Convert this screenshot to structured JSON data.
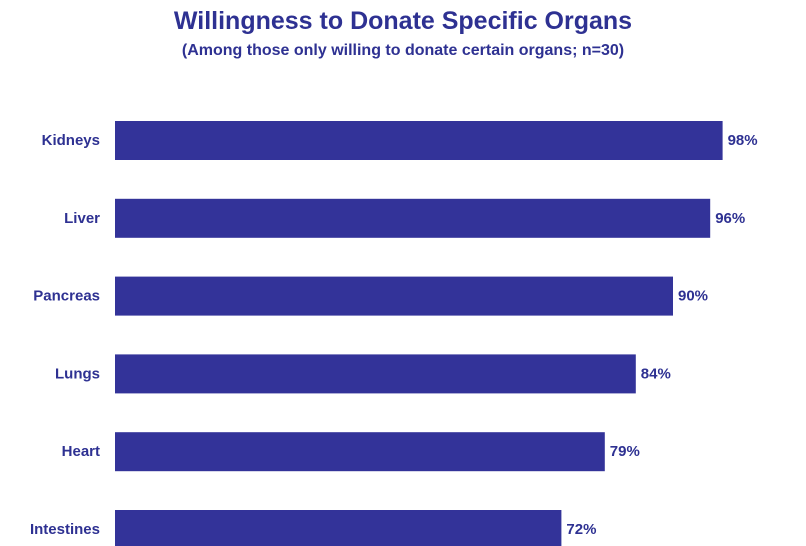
{
  "chart_data": {
    "type": "bar",
    "orientation": "horizontal",
    "title": "Willingness to Donate Specific Organs",
    "subtitle": "(Among those only willing to donate certain organs; n=30)",
    "categories": [
      "Kidneys",
      "Liver",
      "Pancreas",
      "Lungs",
      "Heart",
      "Intestines"
    ],
    "values": [
      98,
      96,
      90,
      84,
      79,
      72
    ],
    "value_labels": [
      "98%",
      "96%",
      "90%",
      "84%",
      "79%",
      "72%"
    ],
    "value_suffix": "%",
    "xlim": [
      0,
      100
    ],
    "grid": false,
    "legend": "none"
  },
  "colors": {
    "bar": "#333399",
    "text": "#2E3192"
  }
}
